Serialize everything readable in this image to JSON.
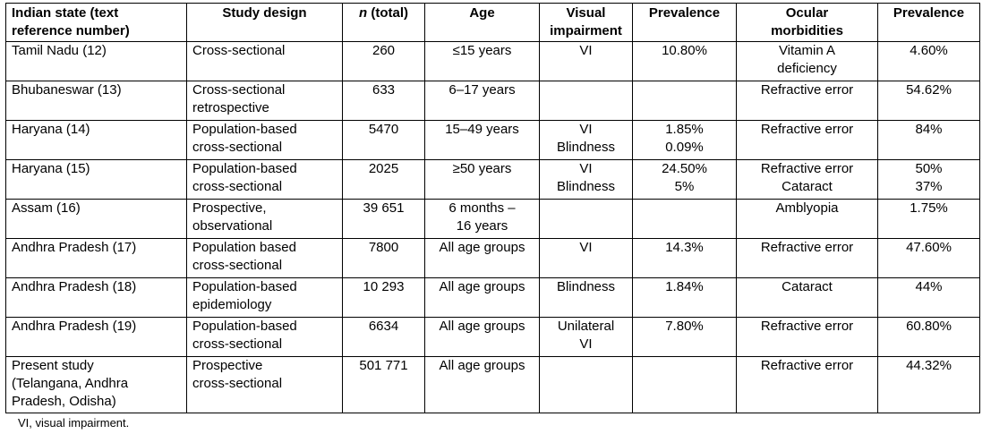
{
  "table": {
    "headers": [
      {
        "lines": [
          "Indian state (text",
          "reference number)"
        ]
      },
      {
        "lines": [
          "Study design"
        ]
      },
      {
        "italic": "n",
        "rest": " (total)"
      },
      {
        "lines": [
          "Age"
        ]
      },
      {
        "lines": [
          "Visual",
          "impairment"
        ]
      },
      {
        "lines": [
          "Prevalence"
        ]
      },
      {
        "lines": [
          "Ocular",
          "morbidities"
        ]
      },
      {
        "lines": [
          "Prevalence"
        ]
      }
    ],
    "rows": [
      {
        "state": [
          "Tamil Nadu (12)"
        ],
        "design": [
          "Cross-sectional"
        ],
        "n": [
          "260"
        ],
        "age": [
          "≤15 years"
        ],
        "vi": [
          "VI"
        ],
        "vi_prev": [
          "10.80%"
        ],
        "morbidity": [
          "Vitamin A",
          "deficiency"
        ],
        "morb_prev": [
          "4.60%"
        ]
      },
      {
        "state": [
          "Bhubaneswar (13)"
        ],
        "design": [
          "Cross-sectional",
          "retrospective"
        ],
        "n": [
          "633"
        ],
        "age": [
          "6–17 years"
        ],
        "vi": [],
        "vi_prev": [],
        "morbidity": [
          "Refractive error"
        ],
        "morb_prev": [
          "54.62%"
        ]
      },
      {
        "state": [
          "Haryana (14)"
        ],
        "design": [
          "Population-based",
          "cross-sectional"
        ],
        "n": [
          "5470"
        ],
        "age": [
          "15–49 years"
        ],
        "vi": [
          "VI",
          "Blindness"
        ],
        "vi_prev": [
          "1.85%",
          "0.09%"
        ],
        "morbidity": [
          "Refractive error"
        ],
        "morb_prev": [
          "84%"
        ]
      },
      {
        "state": [
          "Haryana (15)"
        ],
        "design": [
          "Population-based",
          "cross-sectional"
        ],
        "n": [
          "2025"
        ],
        "age": [
          "≥50 years"
        ],
        "vi": [
          "VI",
          "Blindness"
        ],
        "vi_prev": [
          "24.50%",
          "5%"
        ],
        "morbidity": [
          "Refractive error",
          "Cataract"
        ],
        "morb_prev": [
          "50%",
          "37%"
        ]
      },
      {
        "state": [
          "Assam (16)"
        ],
        "design": [
          "Prospective,",
          "observational"
        ],
        "n": [
          "39 651"
        ],
        "age": [
          "6 months –",
          "16 years"
        ],
        "vi": [],
        "vi_prev": [],
        "morbidity": [
          "Amblyopia"
        ],
        "morb_prev": [
          "1.75%"
        ]
      },
      {
        "state": [
          "Andhra Pradesh (17)"
        ],
        "design": [
          "Population based",
          "cross-sectional"
        ],
        "n": [
          "7800"
        ],
        "age": [
          "All age groups"
        ],
        "vi": [
          "VI"
        ],
        "vi_prev": [
          "14.3%"
        ],
        "morbidity": [
          "Refractive error"
        ],
        "morb_prev": [
          "47.60%"
        ]
      },
      {
        "state": [
          "Andhra Pradesh (18)"
        ],
        "design": [
          "Population-based",
          "epidemiology"
        ],
        "n": [
          "10 293"
        ],
        "age": [
          "All age groups"
        ],
        "vi": [
          "Blindness"
        ],
        "vi_prev": [
          "1.84%"
        ],
        "morbidity": [
          "Cataract"
        ],
        "morb_prev": [
          "44%"
        ]
      },
      {
        "state": [
          "Andhra Pradesh (19)"
        ],
        "design": [
          "Population-based",
          "cross-sectional"
        ],
        "n": [
          "6634"
        ],
        "age": [
          "All age groups"
        ],
        "vi": [
          "Unilateral",
          "VI"
        ],
        "vi_prev": [
          "7.80%"
        ],
        "morbidity": [
          "Refractive error"
        ],
        "morb_prev": [
          "60.80%"
        ]
      },
      {
        "state": [
          "Present study",
          "(Telangana, Andhra",
          "Pradesh, Odisha)"
        ],
        "design": [
          "Prospective",
          "cross-sectional"
        ],
        "n": [
          "501 771"
        ],
        "age": [
          "All age groups"
        ],
        "vi": [],
        "vi_prev": [],
        "morbidity": [
          "Refractive error"
        ],
        "morb_prev": [
          "44.32%"
        ]
      }
    ]
  },
  "footnote": "VI, visual impairment."
}
